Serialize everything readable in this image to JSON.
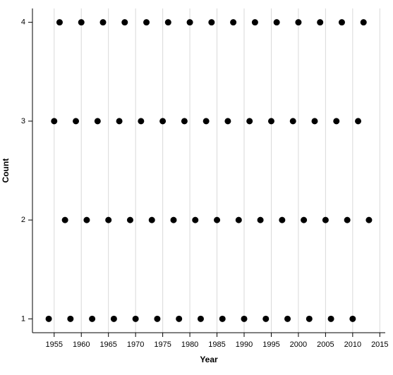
{
  "chart_data": {
    "type": "scatter",
    "x_label": "Year",
    "y_label": "Count",
    "x": [
      1954,
      1955,
      1956,
      1957,
      1958,
      1959,
      1960,
      1961,
      1962,
      1963,
      1964,
      1965,
      1966,
      1967,
      1968,
      1969,
      1970,
      1971,
      1972,
      1973,
      1974,
      1975,
      1976,
      1977,
      1978,
      1979,
      1980,
      1981,
      1982,
      1983,
      1984,
      1985,
      1986,
      1987,
      1988,
      1989,
      1990,
      1991,
      1992,
      1993,
      1994,
      1995,
      1996,
      1997,
      1998,
      1999,
      2000,
      2001,
      2002,
      2003,
      2004,
      2005,
      2006,
      2007,
      2008,
      2009,
      2010,
      2011,
      2012,
      2013
    ],
    "values": [
      1,
      3,
      4,
      2,
      1,
      3,
      4,
      2,
      1,
      3,
      4,
      2,
      1,
      3,
      4,
      2,
      1,
      3,
      4,
      2,
      1,
      3,
      4,
      2,
      1,
      3,
      4,
      2,
      1,
      3,
      4,
      2,
      1,
      3,
      4,
      2,
      1,
      3,
      4,
      2,
      1,
      3,
      4,
      2,
      1,
      3,
      4,
      2,
      1,
      3,
      4,
      2,
      1,
      3,
      4,
      2,
      1,
      3,
      4,
      2
    ],
    "color": "#000000",
    "xlim": [
      1951,
      2016
    ],
    "ylim": [
      0.86,
      4.14
    ],
    "xticks": [
      1955,
      1960,
      1965,
      1970,
      1975,
      1980,
      1985,
      1990,
      1995,
      2000,
      2005,
      2010,
      2015
    ],
    "yticks": [
      1,
      2,
      3,
      4
    ],
    "grid": "x"
  }
}
